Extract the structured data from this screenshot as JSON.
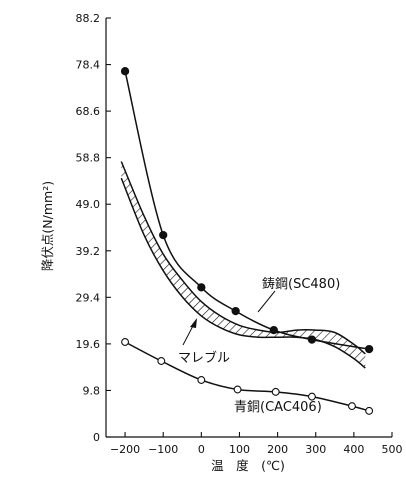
{
  "chart_data": {
    "type": "line",
    "xlabel": "温　度　(℃)",
    "ylabel": "降伏点(N/mm²)",
    "xlim": [
      -250,
      500
    ],
    "ylim": [
      0,
      88.2
    ],
    "xticks": [
      -200,
      -100,
      0,
      100,
      200,
      300,
      400,
      500
    ],
    "xtick_labels": [
      "−200",
      "−100",
      "0",
      "100",
      "200",
      "300",
      "400",
      "500"
    ],
    "yticks": [
      0,
      9.8,
      19.6,
      29.4,
      39.2,
      49.0,
      58.8,
      68.6,
      78.4,
      88.2
    ],
    "ytick_labels": [
      "0",
      "9.8",
      "19.6",
      "29.4",
      "39.2",
      "49.0",
      "58.8",
      "68.6",
      "78.4",
      "88.2"
    ],
    "grid": false,
    "series": [
      {
        "name": "鋳鋼(SC480)",
        "marker": "filled-circle",
        "x": [
          -200,
          -100,
          0,
          90,
          190,
          290,
          440
        ],
        "y": [
          77.0,
          42.5,
          31.5,
          26.5,
          22.5,
          20.5,
          18.5
        ]
      },
      {
        "name": "青銅(CAC406)",
        "marker": "open-circle",
        "x": [
          -200,
          -105,
          0,
          95,
          195,
          290,
          395,
          440
        ],
        "y": [
          20.0,
          16.0,
          12.0,
          10.0,
          9.5,
          8.5,
          6.5,
          5.5
        ]
      },
      {
        "name": "マレブル",
        "marker": "none",
        "style": "hatched-band",
        "x": [
          -210,
          -150,
          -100,
          -50,
          0,
          50,
          100,
          150,
          200,
          250,
          300,
          350,
          400,
          430
        ],
        "y_upper": [
          58.0,
          46.5,
          38.5,
          33.0,
          28.5,
          25.5,
          23.5,
          22.5,
          22.0,
          22.5,
          22.5,
          22.0,
          19.5,
          17.5
        ],
        "y_lower": [
          54.5,
          42.5,
          35.0,
          29.5,
          25.5,
          23.0,
          21.5,
          21.0,
          21.0,
          21.0,
          20.5,
          19.0,
          16.5,
          14.5
        ]
      }
    ],
    "annotations": [
      {
        "text": "鋳鋼(SC480)",
        "series": 0
      },
      {
        "text": "マレブル",
        "series": 2
      },
      {
        "text": "青銅(CAC406)",
        "series": 1
      }
    ]
  }
}
